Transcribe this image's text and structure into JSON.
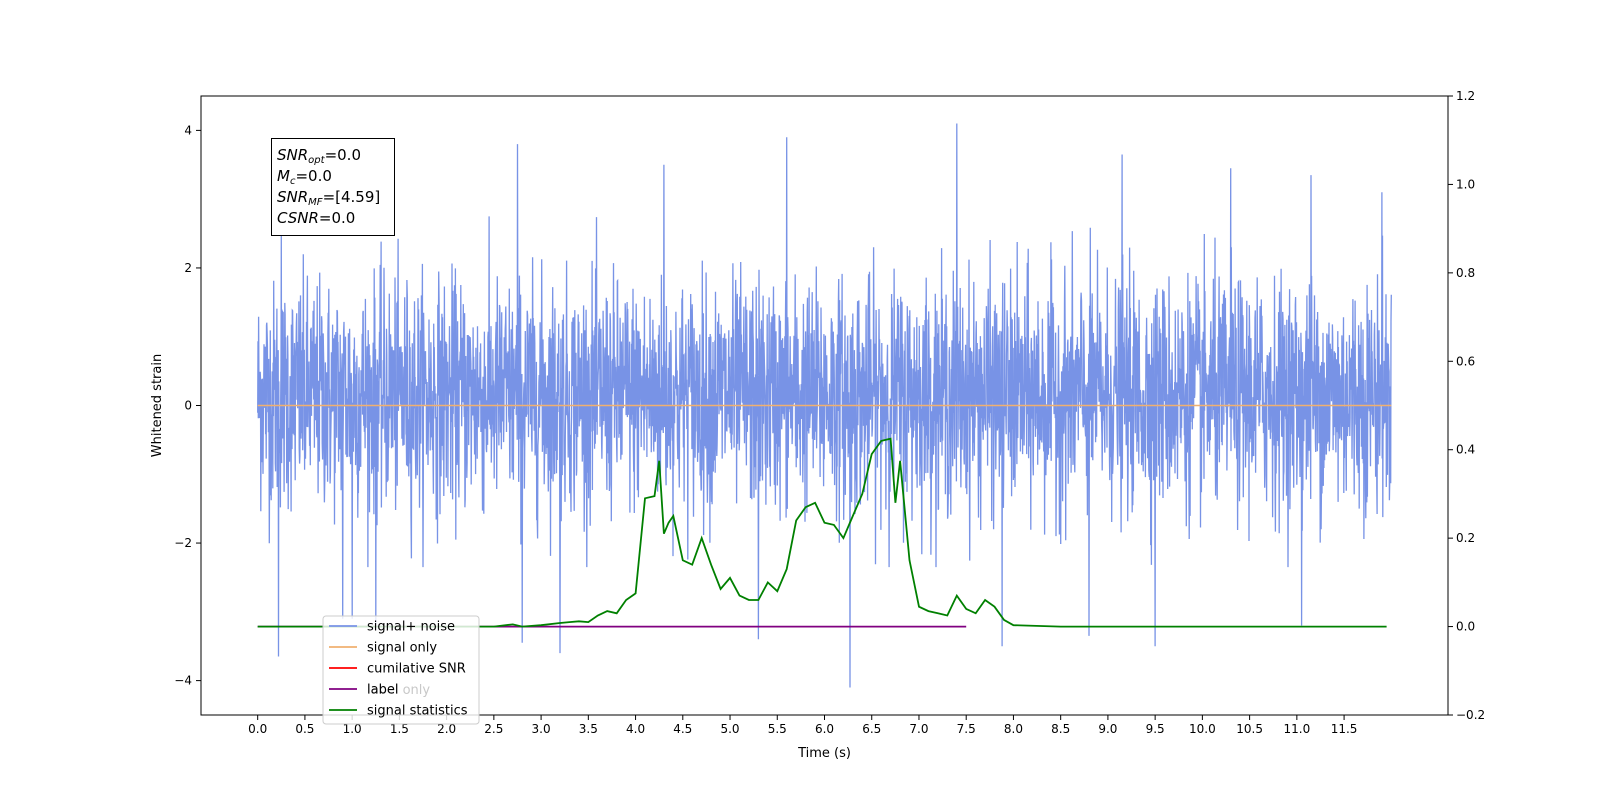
{
  "chart_data": {
    "type": "line",
    "xlabel": "Time (s)",
    "ylabel": "Whitened strain",
    "xlim": [
      -0.6,
      12.6
    ],
    "ylim": [
      -4.5,
      4.5
    ],
    "y2lim": [
      -0.2,
      1.2
    ],
    "xticks": [
      0.0,
      0.5,
      1.0,
      1.5,
      2.0,
      2.5,
      3.0,
      3.5,
      4.0,
      4.5,
      5.0,
      5.5,
      6.0,
      6.5,
      7.0,
      7.5,
      8.0,
      8.5,
      9.0,
      9.5,
      10.0,
      10.5,
      11.0,
      11.5
    ],
    "xtick_labels": [
      "0.0",
      "0.5",
      "1.0",
      "1.5",
      "2.0",
      "2.5",
      "3.0",
      "3.5",
      "4.0",
      "4.5",
      "5.0",
      "5.5",
      "6.0",
      "6.5",
      "7.0",
      "7.5",
      "8.0",
      "8.5",
      "9.0",
      "9.5",
      "10.0",
      "10.5",
      "11.0",
      "11.5"
    ],
    "yticks": [
      4,
      2,
      0,
      -2,
      -4
    ],
    "ytick_labels": [
      "4",
      "2",
      "0",
      "−2",
      "−4"
    ],
    "y2ticks": [
      1.2,
      1.0,
      0.8,
      0.6,
      0.4,
      0.2,
      0.0,
      -0.2
    ],
    "y2tick_labels": [
      "1.2",
      "1.0",
      "0.8",
      "0.6",
      "0.4",
      "0.2",
      "0.0",
      "−0.2"
    ],
    "grid": false,
    "legend_position": "lower-left",
    "legend": [
      "signal+ noise",
      "signal only",
      "cumilative SNR",
      "label",
      "signal statistics"
    ],
    "legend_ghost_text": "label only",
    "noise_envelope": {
      "t_range": [
        0.0,
        12.0
      ],
      "typical_range": [
        -2.0,
        2.5
      ],
      "spike_max": [
        [
          0.25,
          2.5
        ],
        [
          2.75,
          3.8
        ],
        [
          4.3,
          3.5
        ],
        [
          5.6,
          3.9
        ],
        [
          7.4,
          4.1
        ],
        [
          9.15,
          3.65
        ],
        [
          10.3,
          3.45
        ],
        [
          11.15,
          3.35
        ],
        [
          11.9,
          3.1
        ]
      ],
      "spike_min": [
        [
          0.22,
          -3.65
        ],
        [
          0.9,
          -3.1
        ],
        [
          1.0,
          -3.1
        ],
        [
          1.25,
          -3.2
        ],
        [
          2.8,
          -3.45
        ],
        [
          3.2,
          -3.6
        ],
        [
          5.3,
          -3.4
        ],
        [
          6.27,
          -4.1
        ],
        [
          7.88,
          -3.5
        ],
        [
          8.8,
          -3.35
        ],
        [
          9.5,
          -3.5
        ],
        [
          11.05,
          -3.2
        ]
      ]
    },
    "series": [
      {
        "name": "signal+ noise",
        "color": "#7893e6",
        "axis": "left",
        "style": "dense-noise"
      },
      {
        "name": "signal only",
        "color": "#f0b070",
        "axis": "left",
        "x": [
          0.0,
          12.0
        ],
        "y": [
          0.0,
          0.0
        ]
      },
      {
        "name": "cumilative SNR",
        "color": "#ff0000",
        "axis": "right",
        "x": [],
        "y": []
      },
      {
        "name": "label",
        "color": "#800080",
        "axis": "right",
        "x": [
          0.0,
          7.5
        ],
        "y": [
          0.0,
          0.0
        ]
      },
      {
        "name": "signal statistics",
        "color": "#008000",
        "axis": "right",
        "x": [
          0.0,
          2.5,
          2.7,
          2.8,
          3.0,
          3.2,
          3.3,
          3.4,
          3.5,
          3.6,
          3.7,
          3.8,
          3.9,
          4.0,
          4.1,
          4.2,
          4.25,
          4.3,
          4.35,
          4.4,
          4.5,
          4.6,
          4.7,
          4.8,
          4.9,
          5.0,
          5.1,
          5.2,
          5.3,
          5.4,
          5.5,
          5.6,
          5.7,
          5.8,
          5.9,
          6.0,
          6.1,
          6.2,
          6.3,
          6.4,
          6.5,
          6.6,
          6.7,
          6.75,
          6.8,
          6.9,
          7.0,
          7.1,
          7.2,
          7.3,
          7.4,
          7.5,
          7.6,
          7.7,
          7.8,
          7.9,
          8.0,
          8.5,
          9.0,
          10.0,
          11.0,
          11.95
        ],
        "y": [
          0.0,
          0.0,
          0.005,
          0.0,
          0.003,
          0.008,
          0.01,
          0.012,
          0.01,
          0.025,
          0.035,
          0.03,
          0.06,
          0.075,
          0.29,
          0.295,
          0.375,
          0.21,
          0.235,
          0.25,
          0.15,
          0.14,
          0.2,
          0.14,
          0.085,
          0.11,
          0.07,
          0.06,
          0.06,
          0.1,
          0.08,
          0.13,
          0.24,
          0.27,
          0.28,
          0.235,
          0.23,
          0.2,
          0.25,
          0.3,
          0.39,
          0.42,
          0.425,
          0.28,
          0.375,
          0.15,
          0.045,
          0.035,
          0.03,
          0.025,
          0.07,
          0.04,
          0.03,
          0.06,
          0.045,
          0.015,
          0.003,
          0.0,
          0.0,
          0.0,
          0.0,
          0.0
        ]
      }
    ]
  },
  "annotation": {
    "lines": [
      {
        "name": "SNR",
        "sub": "opt",
        "value": "=0.0"
      },
      {
        "name": "M",
        "sub": "c",
        "value": "=0.0"
      },
      {
        "name": "SNR",
        "sub": "MF",
        "value": "=[4.59]"
      },
      {
        "name": "CSNR",
        "sub": "",
        "value": "=0.0"
      }
    ]
  }
}
